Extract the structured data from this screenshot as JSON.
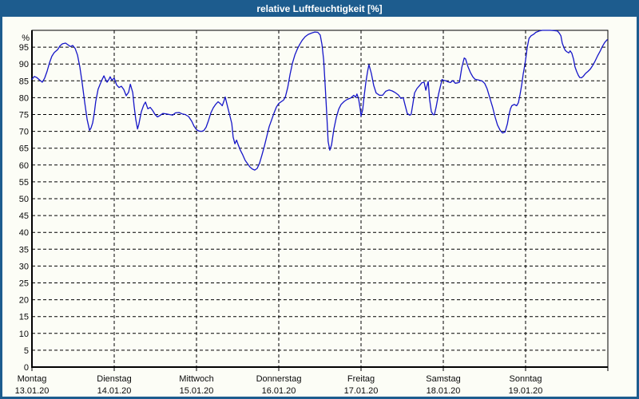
{
  "window": {
    "title": "relative Luftfeuchtigkeit [%]"
  },
  "colors": {
    "titlebar": "#1d5c8e",
    "window_border": "#1d5c8e",
    "background": "#fcfdf6",
    "grid": "#000000",
    "axis": "#000000",
    "text": "#0a0a0a",
    "line": "#1616c8"
  },
  "chart_data": {
    "type": "line",
    "title": "relative Luftfeuchtigkeit [%]",
    "y_unit": "%",
    "ylim": [
      0,
      100
    ],
    "ytick_step": 5,
    "yticks": [
      0,
      5,
      10,
      15,
      20,
      25,
      30,
      35,
      40,
      45,
      50,
      55,
      60,
      65,
      70,
      75,
      80,
      85,
      90,
      95
    ],
    "grid": "dashed",
    "legend_position": "none",
    "x_hours_total": 168,
    "x_days": [
      {
        "name": "Montag",
        "date": "13.01.20"
      },
      {
        "name": "Dienstag",
        "date": "14.01.20"
      },
      {
        "name": "Mittwoch",
        "date": "15.01.20"
      },
      {
        "name": "Donnerstag",
        "date": "16.01.20"
      },
      {
        "name": "Freitag",
        "date": "17.01.20"
      },
      {
        "name": "Samstag",
        "date": "18.01.20"
      },
      {
        "name": "Sonntag",
        "date": "19.01.20"
      }
    ],
    "series": [
      {
        "name": "relative Luftfeuchtigkeit",
        "color": "#1616c8",
        "points": [
          [
            0,
            85.5
          ],
          [
            0.7,
            86.3
          ],
          [
            1.4,
            86
          ],
          [
            2.3,
            85.2
          ],
          [
            3,
            84.6
          ],
          [
            3.7,
            85.8
          ],
          [
            4.4,
            87.8
          ],
          [
            5.1,
            90.3
          ],
          [
            5.8,
            92.3
          ],
          [
            6.5,
            93.4
          ],
          [
            7.5,
            94.3
          ],
          [
            8.2,
            95.4
          ],
          [
            8.9,
            96
          ],
          [
            9.8,
            96.2
          ],
          [
            10.5,
            95.7
          ],
          [
            11.2,
            95.2
          ],
          [
            11.9,
            95.5
          ],
          [
            12.6,
            94.6
          ],
          [
            13.3,
            92.6
          ],
          [
            14,
            88.9
          ],
          [
            14.7,
            84
          ],
          [
            15.4,
            78.5
          ],
          [
            16.1,
            73.5
          ],
          [
            16.8,
            70.3
          ],
          [
            17.2,
            70.9
          ],
          [
            17.7,
            72.5
          ],
          [
            18.2,
            75.5
          ],
          [
            18.6,
            78.8
          ],
          [
            19.3,
            82.5
          ],
          [
            20.3,
            85
          ],
          [
            21,
            86.5
          ],
          [
            21.4,
            85.6
          ],
          [
            21.9,
            84.6
          ],
          [
            22.4,
            85.3
          ],
          [
            22.8,
            86.2
          ],
          [
            23.3,
            85.2
          ],
          [
            24,
            85.8
          ],
          [
            24.7,
            83.8
          ],
          [
            25.4,
            83
          ],
          [
            26.1,
            83.4
          ],
          [
            26.8,
            82.4
          ],
          [
            27.5,
            80.6
          ],
          [
            28.2,
            81.6
          ],
          [
            28.7,
            84
          ],
          [
            29.4,
            81.5
          ],
          [
            29.8,
            77.5
          ],
          [
            30.3,
            73.5
          ],
          [
            30.8,
            70.7
          ],
          [
            31.2,
            72.2
          ],
          [
            31.9,
            75.8
          ],
          [
            32.6,
            77.8
          ],
          [
            33.1,
            78.7
          ],
          [
            33.8,
            76.7
          ],
          [
            34.5,
            77.1
          ],
          [
            35.2,
            76.2
          ],
          [
            35.9,
            75
          ],
          [
            36.6,
            74.3
          ],
          [
            37.3,
            74.7
          ],
          [
            38.2,
            75.3
          ],
          [
            39.1,
            75.2
          ],
          [
            40.1,
            75
          ],
          [
            41,
            74.8
          ],
          [
            41.9,
            75.5
          ],
          [
            42.9,
            75.6
          ],
          [
            43.8,
            75.2
          ],
          [
            44.7,
            75
          ],
          [
            45.7,
            74.4
          ],
          [
            46.6,
            73
          ],
          [
            47.3,
            71.5
          ],
          [
            48,
            70.5
          ],
          [
            48.7,
            70.1
          ],
          [
            49.4,
            70
          ],
          [
            50.1,
            70.2
          ],
          [
            50.8,
            71.2
          ],
          [
            51.5,
            73.2
          ],
          [
            52.2,
            75.5
          ],
          [
            52.9,
            77
          ],
          [
            53.6,
            78
          ],
          [
            54.3,
            78.8
          ],
          [
            55,
            78.2
          ],
          [
            55.5,
            77.6
          ],
          [
            55.9,
            78.7
          ],
          [
            56.4,
            80.2
          ],
          [
            56.9,
            78
          ],
          [
            57.6,
            75.2
          ],
          [
            58.3,
            72.3
          ],
          [
            58.7,
            68.3
          ],
          [
            59.2,
            66.3
          ],
          [
            59.7,
            67.4
          ],
          [
            60.1,
            66.2
          ],
          [
            60.8,
            64.4
          ],
          [
            61.5,
            63
          ],
          [
            62.2,
            61.4
          ],
          [
            62.9,
            60.4
          ],
          [
            63.6,
            59.4
          ],
          [
            64.3,
            58.8
          ],
          [
            65,
            58.5
          ],
          [
            65.7,
            59
          ],
          [
            66.4,
            60.6
          ],
          [
            67.1,
            63
          ],
          [
            67.8,
            65.6
          ],
          [
            68.5,
            68.5
          ],
          [
            69.2,
            71.4
          ],
          [
            69.9,
            73.4
          ],
          [
            70.6,
            75.4
          ],
          [
            71.3,
            77.2
          ],
          [
            72,
            78.3
          ],
          [
            72.7,
            78.8
          ],
          [
            73.4,
            79.3
          ],
          [
            73.9,
            80.2
          ],
          [
            74.6,
            83
          ],
          [
            75.3,
            87
          ],
          [
            76,
            90.3
          ],
          [
            76.7,
            92.7
          ],
          [
            77.4,
            94.4
          ],
          [
            78.1,
            95.8
          ],
          [
            78.8,
            97
          ],
          [
            79.7,
            98.1
          ],
          [
            80.6,
            98.8
          ],
          [
            81.6,
            99.2
          ],
          [
            82.5,
            99.5
          ],
          [
            83.4,
            99.4
          ],
          [
            84.1,
            98.6
          ],
          [
            84.6,
            95.8
          ],
          [
            85.1,
            91.2
          ],
          [
            85.5,
            84.5
          ],
          [
            86,
            75
          ],
          [
            86.4,
            67
          ],
          [
            86.9,
            64.4
          ],
          [
            87.4,
            66
          ],
          [
            88.1,
            70.8
          ],
          [
            88.8,
            74.2
          ],
          [
            89.5,
            76.6
          ],
          [
            90.2,
            78
          ],
          [
            91.1,
            78.9
          ],
          [
            92,
            79.5
          ],
          [
            93,
            79.9
          ],
          [
            93.9,
            80.7
          ],
          [
            94.4,
            80.1
          ],
          [
            94.8,
            81.1
          ],
          [
            95.3,
            79.6
          ],
          [
            95.8,
            76.5
          ],
          [
            96,
            74.5
          ],
          [
            96.5,
            76.5
          ],
          [
            96.9,
            80.5
          ],
          [
            97.4,
            84.5
          ],
          [
            97.9,
            87.8
          ],
          [
            98.3,
            89.8
          ],
          [
            99,
            87.2
          ],
          [
            99.7,
            83.6
          ],
          [
            100.4,
            81.4
          ],
          [
            101.4,
            80.7
          ],
          [
            102.3,
            80.7
          ],
          [
            103.2,
            81.9
          ],
          [
            104.2,
            82.3
          ],
          [
            105.1,
            82
          ],
          [
            106,
            81.5
          ],
          [
            106.9,
            80.8
          ],
          [
            107.6,
            79.8
          ],
          [
            108.3,
            80
          ],
          [
            109,
            77.2
          ],
          [
            109.5,
            75.3
          ],
          [
            110.2,
            74.8
          ],
          [
            110.6,
            75
          ],
          [
            111.1,
            78
          ],
          [
            111.6,
            81.4
          ],
          [
            112.3,
            82.7
          ],
          [
            113,
            83.5
          ],
          [
            113.7,
            84.4
          ],
          [
            114.4,
            84.6
          ],
          [
            114.9,
            82.2
          ],
          [
            115.6,
            84.8
          ],
          [
            116,
            79.6
          ],
          [
            116.5,
            75.9
          ],
          [
            117,
            75
          ],
          [
            117.4,
            74.9
          ],
          [
            117.9,
            77.2
          ],
          [
            118.6,
            81
          ],
          [
            119.3,
            84
          ],
          [
            119.6,
            85.4
          ],
          [
            120,
            85.2
          ],
          [
            120.7,
            85
          ],
          [
            121.4,
            84.7
          ],
          [
            122.1,
            84.5
          ],
          [
            122.8,
            85.1
          ],
          [
            123.5,
            84.3
          ],
          [
            124.2,
            84.4
          ],
          [
            124.7,
            84.6
          ],
          [
            125.4,
            89
          ],
          [
            126.1,
            91.8
          ],
          [
            126.5,
            91.5
          ],
          [
            127.2,
            89.2
          ],
          [
            127.9,
            87.5
          ],
          [
            128.6,
            86.2
          ],
          [
            129.2,
            85.5
          ],
          [
            130.5,
            85.2
          ],
          [
            131.4,
            84.9
          ],
          [
            132.1,
            84.2
          ],
          [
            132.8,
            82.6
          ],
          [
            133.5,
            80.2
          ],
          [
            134.4,
            77.1
          ],
          [
            135.1,
            74.3
          ],
          [
            135.8,
            71.9
          ],
          [
            136.6,
            70.3
          ],
          [
            137.3,
            69.5
          ],
          [
            138,
            69.8
          ],
          [
            138.7,
            72.3
          ],
          [
            139.1,
            74.7
          ],
          [
            139.6,
            76.7
          ],
          [
            140,
            77.6
          ],
          [
            140.7,
            78
          ],
          [
            141.4,
            77.6
          ],
          [
            141.9,
            78.5
          ],
          [
            142.4,
            81
          ],
          [
            142.9,
            84
          ],
          [
            143.3,
            87
          ],
          [
            143.8,
            89.8
          ],
          [
            144,
            91.2
          ],
          [
            144.5,
            95
          ],
          [
            145,
            97.6
          ],
          [
            145.6,
            98.4
          ],
          [
            146.3,
            98.8
          ],
          [
            147,
            99.4
          ],
          [
            148,
            99.8
          ],
          [
            148.9,
            100
          ],
          [
            150.1,
            100
          ],
          [
            151.2,
            100
          ],
          [
            152.4,
            99.9
          ],
          [
            153.3,
            99.8
          ],
          [
            153.8,
            99.2
          ],
          [
            154.3,
            98.4
          ],
          [
            154.7,
            96.2
          ],
          [
            155.2,
            94.8
          ],
          [
            155.6,
            94
          ],
          [
            156.1,
            93.6
          ],
          [
            156.6,
            93.3
          ],
          [
            157,
            93.9
          ],
          [
            157.5,
            93.2
          ],
          [
            158,
            91.4
          ],
          [
            158.4,
            89.2
          ],
          [
            158.9,
            87.8
          ],
          [
            159.4,
            86.6
          ],
          [
            159.8,
            86
          ],
          [
            160.3,
            85.9
          ],
          [
            160.8,
            86.3
          ],
          [
            161.5,
            87.2
          ],
          [
            162.2,
            87.8
          ],
          [
            162.9,
            88.5
          ],
          [
            163.6,
            89.6
          ],
          [
            164.3,
            90.9
          ],
          [
            165,
            92.4
          ],
          [
            165.7,
            93.7
          ],
          [
            166.4,
            95.2
          ],
          [
            167.1,
            96.4
          ],
          [
            167.8,
            97.2
          ]
        ]
      }
    ]
  }
}
